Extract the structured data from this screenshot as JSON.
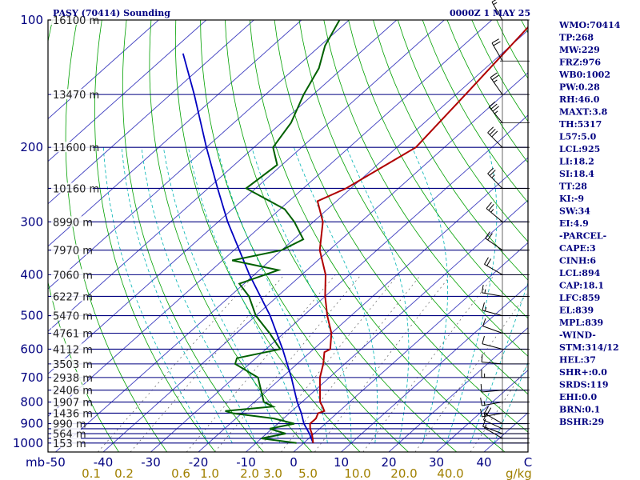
{
  "header": {
    "station": "PASY (70414) Sounding",
    "time": "0000Z  1 MAY 25"
  },
  "colors": {
    "isobar": "#000080",
    "isotherm": "#4040c0",
    "dry_adiabat": "#00a000",
    "moist_adiabat": "#00b4b4",
    "mixing_ratio": "#606060",
    "temperature": "#b00000",
    "dewpoint": "#006000",
    "parcel": "#0000c0",
    "text_blue": "#000080",
    "text_olive": "#a08000"
  },
  "indices": [
    "WMO:70414",
    "TP:268",
    "MW:229",
    "FRZ:976",
    "WB0:1002",
    "PW:0.28",
    "RH:46.0",
    "MAXT:3.8",
    "TH:5317",
    "L57:5.0",
    "LCL:925",
    "LI:18.2",
    "SI:18.4",
    "TT:28",
    "KI:-9",
    "SW:34",
    "EI:4.9",
    "-PARCEL-",
    "CAPE:3",
    "CINH:6",
    "LCL:894",
    "CAP:18.1",
    "LFC:859",
    "EL:839",
    "MPL:839",
    "-WIND-",
    "STM:314/12",
    "HEL:37",
    "SHR+:0.0",
    "SRDS:119",
    "EHI:0.0",
    "BRN:0.1",
    "BSHR:29"
  ],
  "chart_data": {
    "type": "skew-t log-p",
    "y_axis_unit": "mb",
    "pressure_ticks": [
      {
        "p": 100,
        "label": "100"
      },
      {
        "p": 200,
        "label": "200"
      },
      {
        "p": 300,
        "label": "300"
      },
      {
        "p": 400,
        "label": "400"
      },
      {
        "p": 500,
        "label": "500"
      },
      {
        "p": 600,
        "label": "600"
      },
      {
        "p": 700,
        "label": "700"
      },
      {
        "p": 800,
        "label": "800"
      },
      {
        "p": 900,
        "label": "900"
      },
      {
        "p": 1000,
        "label": "1000"
      }
    ],
    "isobars_mb": [
      100,
      150,
      200,
      250,
      300,
      350,
      400,
      450,
      500,
      550,
      600,
      650,
      700,
      750,
      800,
      850,
      900,
      925,
      950,
      975,
      1000
    ],
    "height_labels": [
      {
        "p": 100,
        "label": "16100 m"
      },
      {
        "p": 150,
        "label": "13470 m"
      },
      {
        "p": 200,
        "label": "11600 m"
      },
      {
        "p": 250,
        "label": "10160 m"
      },
      {
        "p": 300,
        "label": "8990 m"
      },
      {
        "p": 350,
        "label": "7970 m"
      },
      {
        "p": 400,
        "label": "7060 m"
      },
      {
        "p": 450,
        "label": "6227 m"
      },
      {
        "p": 500,
        "label": "5470 m"
      },
      {
        "p": 550,
        "label": "4761 m"
      },
      {
        "p": 600,
        "label": "4112 m"
      },
      {
        "p": 650,
        "label": "3503 m"
      },
      {
        "p": 700,
        "label": "2938 m"
      },
      {
        "p": 750,
        "label": "2406 m"
      },
      {
        "p": 800,
        "label": "1907 m"
      },
      {
        "p": 850,
        "label": "1436 m"
      },
      {
        "p": 900,
        "label": "990 m"
      },
      {
        "p": 950,
        "label": "564 m"
      },
      {
        "p": 1000,
        "label": "153 m"
      }
    ],
    "temperature_ticks_c": [
      -50,
      -40,
      -30,
      -20,
      -10,
      0,
      10,
      20,
      30,
      40
    ],
    "temperature_tick_labels": [
      "-50",
      "-40",
      "-30",
      "-20",
      "-10",
      "0",
      "10",
      "20",
      "30",
      "40"
    ],
    "x_axis_unit": "C",
    "mixing_ratio_ticks": [
      {
        "w": 0.1,
        "label": "0.1"
      },
      {
        "w": 0.2,
        "label": "0.2"
      },
      {
        "w": 0.6,
        "label": "0.6"
      },
      {
        "w": 1.0,
        "label": "1.0"
      },
      {
        "w": 2.0,
        "label": "2.0"
      },
      {
        "w": 3.0,
        "label": "3.0"
      },
      {
        "w": 5.0,
        "label": "5.0"
      },
      {
        "w": 10.0,
        "label": "10.0"
      },
      {
        "w": 20.0,
        "label": "20.0"
      },
      {
        "w": 40.0,
        "label": "40.0"
      }
    ],
    "mixing_ratio_unit": "g/kg",
    "temperature_profile": [
      {
        "p": 1000,
        "t": 2.0
      },
      {
        "p": 975,
        "t": 0.8
      },
      {
        "p": 950,
        "t": -0.5
      },
      {
        "p": 925,
        "t": -2.0
      },
      {
        "p": 900,
        "t": -3.2
      },
      {
        "p": 875,
        "t": -3.2
      },
      {
        "p": 850,
        "t": -4.0
      },
      {
        "p": 840,
        "t": -3.2
      },
      {
        "p": 820,
        "t": -4.6
      },
      {
        "p": 800,
        "t": -6.2
      },
      {
        "p": 750,
        "t": -9.0
      },
      {
        "p": 700,
        "t": -12.0
      },
      {
        "p": 650,
        "t": -14.5
      },
      {
        "p": 610,
        "t": -17.0
      },
      {
        "p": 600,
        "t": -16.5
      },
      {
        "p": 550,
        "t": -20.0
      },
      {
        "p": 500,
        "t": -25.0
      },
      {
        "p": 450,
        "t": -30.0
      },
      {
        "p": 400,
        "t": -35.0
      },
      {
        "p": 350,
        "t": -42.0
      },
      {
        "p": 300,
        "t": -48.0
      },
      {
        "p": 268,
        "t": -54.0
      },
      {
        "p": 250,
        "t": -51.0
      },
      {
        "p": 200,
        "t": -46.0
      },
      {
        "p": 150,
        "t": -48.0
      },
      {
        "p": 100,
        "t": -51.0
      }
    ],
    "dewpoint_profile": [
      {
        "p": 1000,
        "td": -1.5
      },
      {
        "p": 975,
        "td": -10.0
      },
      {
        "p": 950,
        "td": -6.0
      },
      {
        "p": 925,
        "td": -10.5
      },
      {
        "p": 900,
        "td": -6.5
      },
      {
        "p": 875,
        "td": -12.0
      },
      {
        "p": 850,
        "td": -22.0
      },
      {
        "p": 840,
        "td": -24.0
      },
      {
        "p": 820,
        "td": -15.0
      },
      {
        "p": 800,
        "td": -18.0
      },
      {
        "p": 700,
        "td": -25.0
      },
      {
        "p": 650,
        "td": -33.0
      },
      {
        "p": 630,
        "td": -34.0
      },
      {
        "p": 600,
        "td": -27.0
      },
      {
        "p": 550,
        "td": -33.0
      },
      {
        "p": 500,
        "td": -40.0
      },
      {
        "p": 450,
        "td": -46.0
      },
      {
        "p": 420,
        "td": -51.0
      },
      {
        "p": 390,
        "td": -46.0
      },
      {
        "p": 370,
        "td": -58.0
      },
      {
        "p": 350,
        "td": -50.0
      },
      {
        "p": 330,
        "td": -48.0
      },
      {
        "p": 300,
        "td": -54.0
      },
      {
        "p": 280,
        "td": -59.0
      },
      {
        "p": 250,
        "td": -72.0
      },
      {
        "p": 220,
        "td": -71.0
      },
      {
        "p": 200,
        "td": -76.0
      },
      {
        "p": 175,
        "td": -78.0
      },
      {
        "p": 150,
        "td": -82.0
      },
      {
        "p": 130,
        "td": -85.0
      },
      {
        "p": 115,
        "td": -89.0
      },
      {
        "p": 100,
        "td": -92.0
      }
    ],
    "parcel_profile": [
      {
        "p": 1000,
        "t": 2.0
      },
      {
        "p": 950,
        "t": -1.0
      },
      {
        "p": 900,
        "t": -4.5
      },
      {
        "p": 850,
        "t": -7.5
      },
      {
        "p": 800,
        "t": -11.0
      },
      {
        "p": 700,
        "t": -18.0
      },
      {
        "p": 600,
        "t": -26.5
      },
      {
        "p": 500,
        "t": -37.0
      },
      {
        "p": 400,
        "t": -51.0
      },
      {
        "p": 300,
        "t": -68.0
      },
      {
        "p": 250,
        "t": -78.0
      },
      {
        "p": 200,
        "t": -90.0
      },
      {
        "p": 150,
        "t": -105.0
      },
      {
        "p": 120,
        "t": -117.0
      }
    ],
    "wind_barbs": [
      {
        "p": 1000,
        "dir": 315,
        "kt": 0
      },
      {
        "p": 975,
        "dir": 300,
        "kt": 5
      },
      {
        "p": 950,
        "dir": 290,
        "kt": 10
      },
      {
        "p": 925,
        "dir": 295,
        "kt": 10
      },
      {
        "p": 900,
        "dir": 300,
        "kt": 20
      },
      {
        "p": 850,
        "dir": 260,
        "kt": 15
      },
      {
        "p": 800,
        "dir": 260,
        "kt": 15
      },
      {
        "p": 750,
        "dir": 265,
        "kt": 10
      },
      {
        "p": 700,
        "dir": 270,
        "kt": 15
      },
      {
        "p": 650,
        "dir": 275,
        "kt": 10
      },
      {
        "p": 600,
        "dir": 285,
        "kt": 10
      },
      {
        "p": 550,
        "dir": 290,
        "kt": 10
      },
      {
        "p": 500,
        "dir": 285,
        "kt": 15
      },
      {
        "p": 450,
        "dir": 280,
        "kt": 15
      },
      {
        "p": 400,
        "dir": 300,
        "kt": 20
      },
      {
        "p": 350,
        "dir": 305,
        "kt": 20
      },
      {
        "p": 300,
        "dir": 310,
        "kt": 25
      },
      {
        "p": 250,
        "dir": 315,
        "kt": 25
      },
      {
        "p": 200,
        "dir": 315,
        "kt": 30
      },
      {
        "p": 175,
        "dir": 320,
        "kt": 35
      },
      {
        "p": 150,
        "dir": 325,
        "kt": 25
      },
      {
        "p": 125,
        "dir": 330,
        "kt": 20
      },
      {
        "p": 100,
        "dir": 330,
        "kt": 15
      }
    ]
  }
}
